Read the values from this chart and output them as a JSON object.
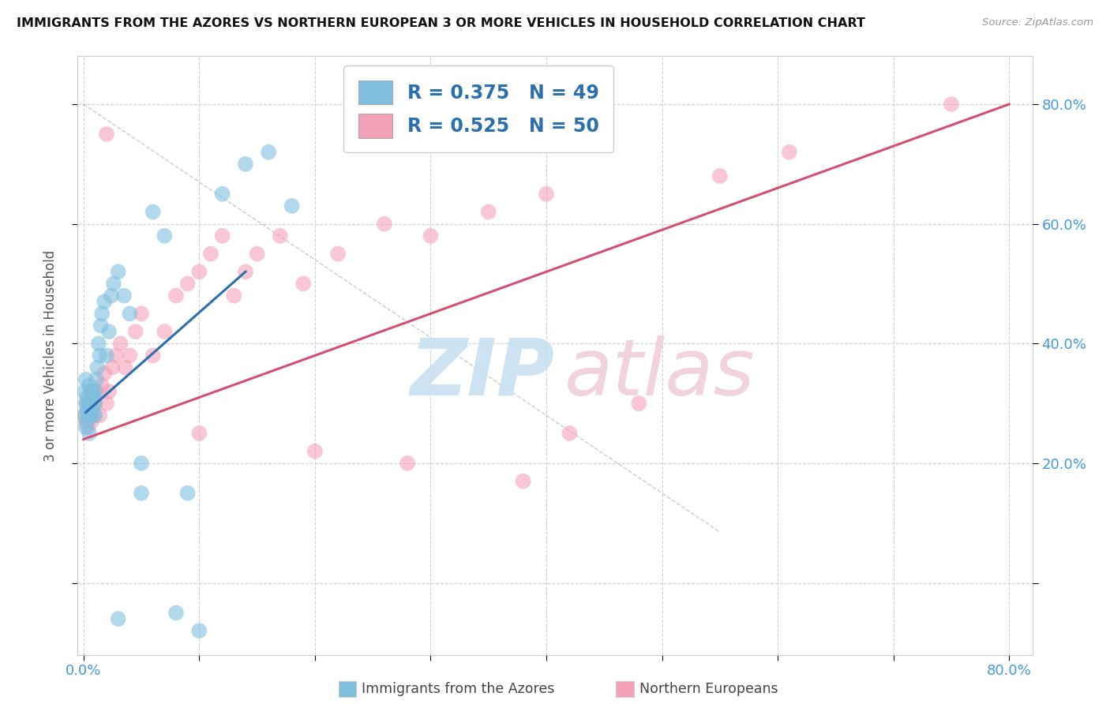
{
  "title": "IMMIGRANTS FROM THE AZORES VS NORTHERN EUROPEAN 3 OR MORE VEHICLES IN HOUSEHOLD CORRELATION CHART",
  "source": "Source: ZipAtlas.com",
  "ylabel": "3 or more Vehicles in Household",
  "xlim": [
    -0.005,
    0.82
  ],
  "ylim": [
    -0.12,
    0.88
  ],
  "xtick_positions": [
    0.0,
    0.1,
    0.2,
    0.3,
    0.4,
    0.5,
    0.6,
    0.7,
    0.8
  ],
  "ytick_positions": [
    0.0,
    0.2,
    0.4,
    0.6,
    0.8
  ],
  "xticklabels": [
    "0.0%",
    "",
    "",
    "",
    "",
    "",
    "",
    "",
    "80.0%"
  ],
  "yticklabels": [
    "",
    "20.0%",
    "40.0%",
    "60.0%",
    "80.0%"
  ],
  "blue_color": "#7fbfdf",
  "pink_color": "#f4a0b8",
  "blue_line_color": "#2c6fad",
  "pink_line_color": "#d45070",
  "tick_label_color": "#4499dd",
  "legend_text_color": "#2c6fad",
  "background_color": "#ffffff",
  "grid_color": "#d0d0d0",
  "blue_scatter_x": [
    0.001,
    0.001,
    0.002,
    0.002,
    0.002,
    0.003,
    0.003,
    0.003,
    0.004,
    0.004,
    0.005,
    0.005,
    0.005,
    0.006,
    0.006,
    0.007,
    0.007,
    0.008,
    0.008,
    0.009,
    0.01,
    0.01,
    0.01,
    0.011,
    0.012,
    0.013,
    0.014,
    0.015,
    0.016,
    0.018,
    0.02,
    0.022,
    0.024,
    0.026,
    0.03,
    0.035,
    0.04,
    0.05,
    0.06,
    0.07,
    0.08,
    0.09,
    0.1,
    0.12,
    0.14,
    0.16,
    0.18,
    0.05,
    0.03
  ],
  "blue_scatter_y": [
    0.28,
    0.32,
    0.3,
    0.26,
    0.34,
    0.27,
    0.31,
    0.29,
    0.28,
    0.3,
    0.25,
    0.3,
    0.33,
    0.28,
    0.32,
    0.3,
    0.28,
    0.32,
    0.29,
    0.31,
    0.3,
    0.32,
    0.28,
    0.34,
    0.36,
    0.4,
    0.38,
    0.43,
    0.45,
    0.47,
    0.38,
    0.42,
    0.48,
    0.5,
    0.52,
    0.48,
    0.45,
    0.15,
    0.62,
    0.58,
    -0.05,
    0.15,
    -0.08,
    0.65,
    0.7,
    0.72,
    0.63,
    0.2,
    -0.06
  ],
  "pink_scatter_x": [
    0.001,
    0.002,
    0.003,
    0.004,
    0.005,
    0.006,
    0.007,
    0.008,
    0.009,
    0.01,
    0.012,
    0.014,
    0.016,
    0.018,
    0.02,
    0.022,
    0.025,
    0.028,
    0.032,
    0.036,
    0.04,
    0.045,
    0.05,
    0.06,
    0.07,
    0.08,
    0.09,
    0.1,
    0.11,
    0.12,
    0.13,
    0.14,
    0.15,
    0.17,
    0.19,
    0.22,
    0.26,
    0.3,
    0.35,
    0.4,
    0.1,
    0.2,
    0.28,
    0.38,
    0.42,
    0.48,
    0.55,
    0.61,
    0.02,
    0.75
  ],
  "pink_scatter_y": [
    0.28,
    0.27,
    0.3,
    0.26,
    0.29,
    0.31,
    0.27,
    0.32,
    0.28,
    0.3,
    0.32,
    0.28,
    0.33,
    0.35,
    0.3,
    0.32,
    0.36,
    0.38,
    0.4,
    0.36,
    0.38,
    0.42,
    0.45,
    0.38,
    0.42,
    0.48,
    0.5,
    0.52,
    0.55,
    0.58,
    0.48,
    0.52,
    0.55,
    0.58,
    0.5,
    0.55,
    0.6,
    0.58,
    0.62,
    0.65,
    0.25,
    0.22,
    0.2,
    0.17,
    0.25,
    0.3,
    0.68,
    0.72,
    0.75,
    0.8
  ],
  "blue_trendline_x": [
    0.002,
    0.14
  ],
  "blue_trendline_y": [
    0.285,
    0.52
  ],
  "pink_trendline_x": [
    0.0,
    0.8
  ],
  "pink_trendline_y": [
    0.24,
    0.8
  ],
  "dashed_line_x": [
    0.0,
    0.55
  ],
  "dashed_line_y": [
    0.8,
    0.085
  ],
  "watermark_zip_color": "#c8e0f0",
  "watermark_atlas_color": "#f0d0d8"
}
